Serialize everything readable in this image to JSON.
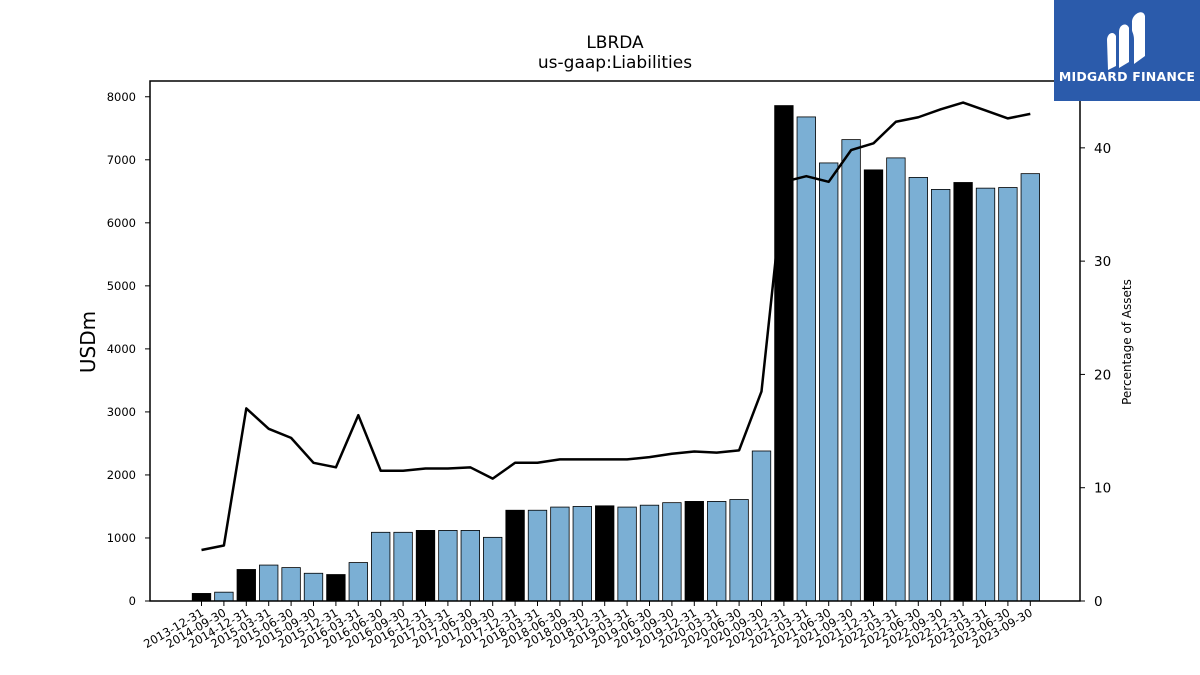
{
  "header": {
    "title": "LBRDA",
    "subtitle": "us-gaap:Liabilities"
  },
  "logo": {
    "text": "MIDGARD FINANCE",
    "icon": "midgard-logo-icon",
    "background": "#2b5bab"
  },
  "colors": {
    "bar_default": "#7bafd4",
    "bar_highlight": "#000000",
    "line": "#000000"
  },
  "chart_data": {
    "type": "bar",
    "title": "LBRDA",
    "subtitle": "us-gaap:Liabilities",
    "ylabel": "USDm",
    "y2label": "Percentage of Assets",
    "ylim": [
      0,
      8250
    ],
    "y2lim": [
      0,
      45.9
    ],
    "yticks": [
      0,
      1000,
      2000,
      3000,
      4000,
      5000,
      6000,
      7000,
      8000
    ],
    "y2ticks": [
      0,
      10,
      20,
      30,
      40
    ],
    "categories": [
      "2013-12-31",
      "2014-09-30",
      "2014-12-31",
      "2015-03-31",
      "2015-06-30",
      "2015-09-30",
      "2015-12-31",
      "2016-03-31",
      "2016-06-30",
      "2016-09-30",
      "2016-12-31",
      "2017-03-31",
      "2017-06-30",
      "2017-09-30",
      "2017-12-31",
      "2018-03-31",
      "2018-06-30",
      "2018-09-30",
      "2018-12-31",
      "2019-03-31",
      "2019-06-30",
      "2019-09-30",
      "2019-12-31",
      "2020-03-31",
      "2020-06-30",
      "2020-09-30",
      "2020-12-31",
      "2021-03-31",
      "2021-06-30",
      "2021-09-30",
      "2021-12-31",
      "2022-03-31",
      "2022-06-30",
      "2022-09-30",
      "2022-12-31",
      "2023-03-31",
      "2023-06-30",
      "2023-09-30"
    ],
    "series": [
      {
        "kind": "bar",
        "values": [
          120,
          140,
          500,
          570,
          530,
          440,
          420,
          610,
          1090,
          1090,
          1120,
          1120,
          1120,
          1010,
          1440,
          1440,
          1490,
          1500,
          1510,
          1490,
          1520,
          1560,
          1580,
          1580,
          1610,
          2380,
          7860,
          7680,
          6950,
          7320,
          6840,
          7030,
          6720,
          6530,
          6640,
          6550,
          6560,
          6780
        ],
        "highlight": [
          true,
          false,
          true,
          false,
          false,
          false,
          true,
          false,
          false,
          false,
          true,
          false,
          false,
          false,
          true,
          false,
          false,
          false,
          true,
          false,
          false,
          false,
          true,
          false,
          false,
          false,
          true,
          false,
          false,
          false,
          true,
          false,
          false,
          false,
          true,
          false,
          false,
          false
        ]
      },
      {
        "kind": "line",
        "axis": "right",
        "values": [
          4.5,
          4.9,
          17.0,
          15.2,
          14.4,
          12.2,
          11.8,
          16.4,
          11.5,
          11.5,
          11.7,
          11.7,
          11.8,
          10.8,
          12.2,
          12.2,
          12.5,
          12.5,
          12.5,
          12.5,
          12.7,
          13.0,
          13.2,
          13.1,
          13.3,
          18.5,
          37.0,
          37.5,
          37.0,
          39.8,
          40.4,
          42.3,
          42.7,
          43.4,
          44.0,
          43.3,
          42.6,
          43.0
        ]
      }
    ],
    "grid": false,
    "legend": "none"
  }
}
